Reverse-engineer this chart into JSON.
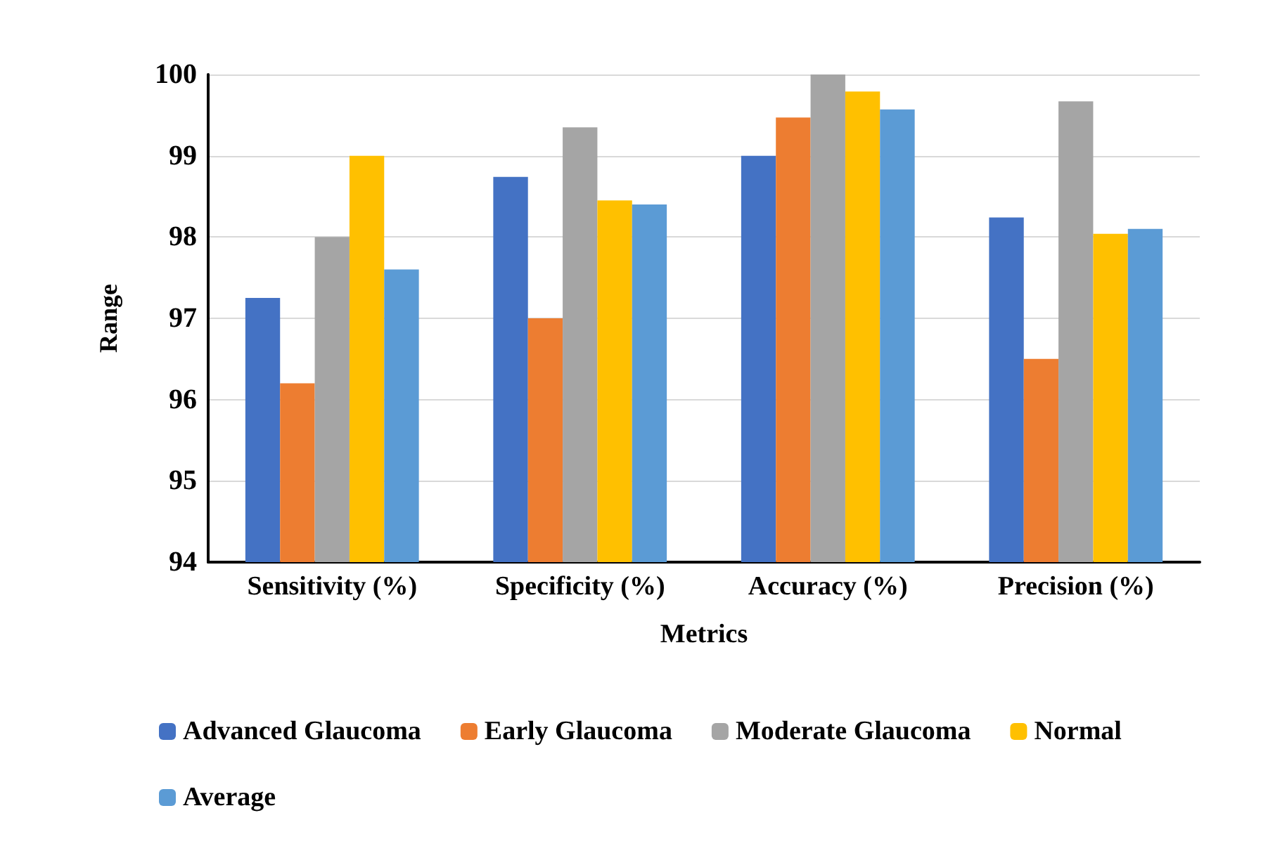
{
  "chart_data": {
    "type": "bar",
    "xlabel": "Metrics",
    "ylabel": "Range",
    "categories": [
      "Sensitivity (%)",
      "Specificity (%)",
      "Accuracy (%)",
      "Precision (%)"
    ],
    "series": [
      {
        "name": "Advanced Glaucoma",
        "color": "#4472c4",
        "values": [
          97.25,
          98.74,
          99.0,
          98.24
        ]
      },
      {
        "name": "Early Glaucoma",
        "color": "#ed7d31",
        "values": [
          96.2,
          97.0,
          99.47,
          96.5
        ]
      },
      {
        "name": "Moderate Glaucoma",
        "color": "#a5a5a5",
        "values": [
          98.0,
          99.35,
          100.0,
          99.67
        ]
      },
      {
        "name": "Normal",
        "color": "#ffc000",
        "values": [
          99.0,
          98.45,
          99.79,
          98.04
        ]
      },
      {
        "name": "Average",
        "color": "#5b9bd5",
        "values": [
          97.6,
          98.4,
          99.57,
          98.1
        ]
      }
    ],
    "ylim": [
      94,
      100
    ],
    "yticks": [
      94,
      95,
      96,
      97,
      98,
      99,
      100
    ],
    "grid": "y",
    "legend": "bottom"
  }
}
